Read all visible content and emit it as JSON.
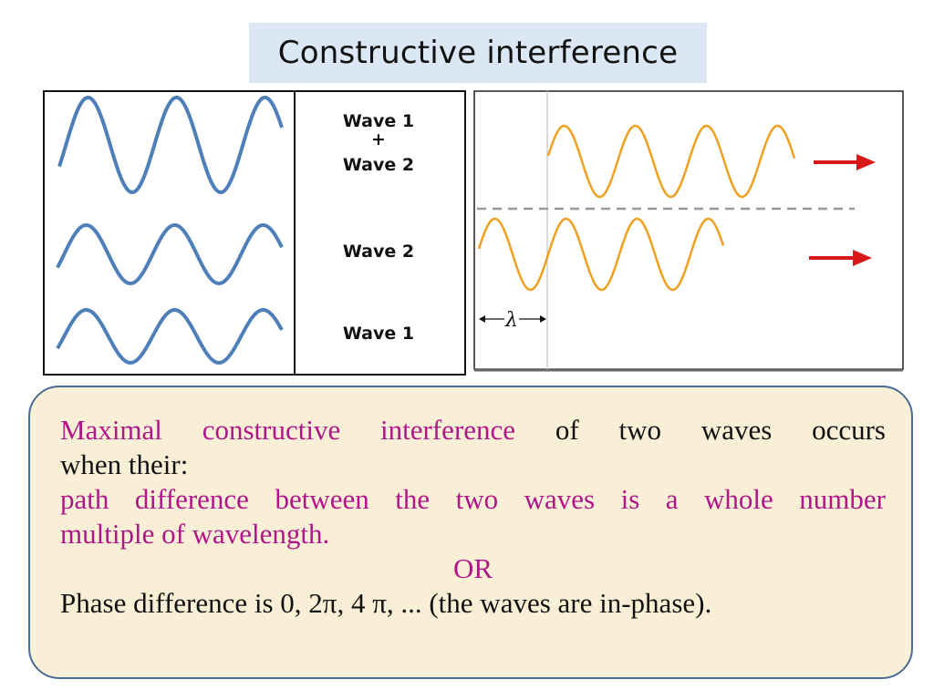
{
  "title": "Constructive interference",
  "left_figure": {
    "labels": {
      "sum_line1": "Wave 1",
      "sum_plus": "+",
      "sum_line2": "Wave 2",
      "wave2": "Wave 2",
      "wave1": "Wave 1"
    },
    "wave_color": "#4f7fb8"
  },
  "right_figure": {
    "wavelength_symbol": "λ",
    "wave_color": "#f0a020",
    "arrow_color": "#d81818",
    "dash_color": "#999999"
  },
  "text": {
    "line1_highlight": "Maximal constructive interference",
    "line1_rest": "of two waves occurs",
    "line2": "when their:",
    "line3": "path difference between the two waves is a whole number",
    "line4": "multiple of wavelength.",
    "or": "OR",
    "line6": "Phase difference is 0, 2π, 4 π, ... (the waves are in-phase)."
  },
  "colors": {
    "highlight": "#b0168a",
    "box_border": "#4a6c96",
    "title_bg": "#dbe7f4",
    "box_bg": "#f9efd6"
  }
}
